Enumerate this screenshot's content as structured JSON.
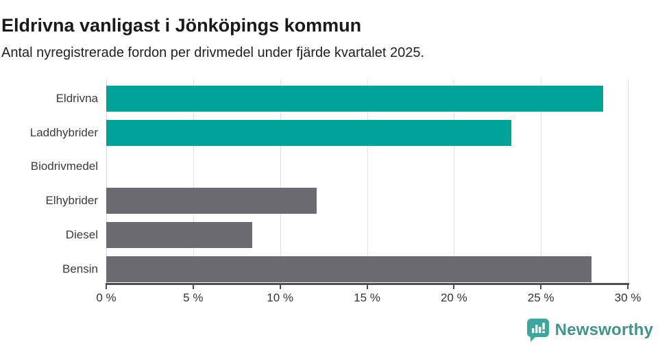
{
  "header": {
    "title": "Eldrivna vanligast i Jönköpings kommun",
    "subtitle": "Antal nyregistrerade fordon per drivmedel under fjärde kvartalet 2025."
  },
  "chart_data": {
    "type": "bar",
    "orientation": "horizontal",
    "title": "Eldrivna vanligast i Jönköpings kommun",
    "subtitle": "Antal nyregistrerade fordon per drivmedel under fjärde kvartalet 2025.",
    "categories": [
      "Eldrivna",
      "Laddhybrider",
      "Biodrivmedel",
      "Elhybrider",
      "Diesel",
      "Bensin"
    ],
    "values": [
      28.6,
      23.3,
      0,
      12.1,
      8.4,
      27.9
    ],
    "bar_colors": [
      "#00a29a",
      "#00a29a",
      "#6c6b71",
      "#6c6b71",
      "#6c6b71",
      "#6c6b71"
    ],
    "highlight_color": "#00a29a",
    "default_color": "#6c6b71",
    "xlim": [
      0,
      30
    ],
    "x_ticks": [
      0,
      5,
      10,
      15,
      20,
      25,
      30
    ],
    "x_tick_labels": [
      "0 %",
      "5 %",
      "10 %",
      "15 %",
      "20 %",
      "25 %",
      "30 %"
    ],
    "xlabel": "",
    "ylabel": "",
    "grid": true,
    "legend": "none"
  },
  "colors": {
    "grid": "#e1e1e1",
    "axis": "#4d4d4d",
    "title_text": "#1a1a1a",
    "label_text": "#3a3a3a",
    "brand_teal": "#43938d",
    "brand_icon_teal": "#3da69e"
  },
  "branding": {
    "logo_text": "Newsworthy",
    "logo_icon": "bar-chart-speech-bubble-icon"
  }
}
